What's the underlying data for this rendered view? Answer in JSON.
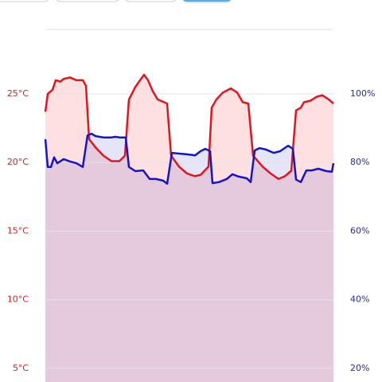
{
  "chart_data": {
    "type": "line",
    "xlim": [
      0,
      362
    ],
    "ylim": [
      4,
      29.7
    ],
    "yticks": [
      {
        "value": 5,
        "label": "5°C"
      },
      {
        "value": 10,
        "label": "10°C"
      },
      {
        "value": 15,
        "label": "15°C"
      },
      {
        "value": 20,
        "label": "20°C"
      },
      {
        "value": 25,
        "label": "25°C"
      }
    ],
    "y2lim": [
      16,
      118.8
    ],
    "y2ticks": [
      {
        "value": 20,
        "label": "20%"
      },
      {
        "value": 40,
        "label": "40%"
      },
      {
        "value": 60,
        "label": "60%"
      },
      {
        "value": 80,
        "label": "80%"
      },
      {
        "value": 100,
        "label": "100%"
      }
    ],
    "grid": true,
    "series": [
      {
        "color": "#e0161e",
        "fill": "rgba(255,0,0,0.12)",
        "x": [
          0,
          3,
          9,
          13,
          19,
          23,
          31,
          39,
          47,
          51,
          55,
          63,
          73,
          83,
          93,
          100,
          105,
          113,
          119,
          124,
          129,
          135,
          141,
          149,
          153,
          158,
          168,
          178,
          188,
          195,
          205,
          209,
          215,
          223,
          233,
          241,
          248,
          255,
          261,
          273,
          283,
          293,
          301,
          309,
          315,
          321,
          325,
          333,
          341,
          348,
          356,
          362
        ],
        "values": [
          23.7,
          25.0,
          25.3,
          26.0,
          25.9,
          26.1,
          26.2,
          26.0,
          26.0,
          25.6,
          21.7,
          21.1,
          20.5,
          20.1,
          20.1,
          20.5,
          24.6,
          25.5,
          26.0,
          26.4,
          26.0,
          25.2,
          24.6,
          24.4,
          24.3,
          20.5,
          19.7,
          19.2,
          19.0,
          19.1,
          19.7,
          24.0,
          24.6,
          25.1,
          25.4,
          25.1,
          24.4,
          24.3,
          20.5,
          19.7,
          19.2,
          18.8,
          19.0,
          19.4,
          23.8,
          24.0,
          24.4,
          24.5,
          24.8,
          24.9,
          24.6,
          24.3
        ]
      },
      {
        "color": "#1414c8",
        "fill": "rgba(0,0,200,0.10)",
        "axis": "y2",
        "x": [
          0,
          3,
          7,
          11,
          15,
          23,
          31,
          39,
          47,
          53,
          58,
          63,
          73,
          83,
          88,
          93,
          101,
          105,
          113,
          123,
          131,
          139,
          148,
          153,
          159,
          168,
          178,
          188,
          195,
          201,
          207,
          210,
          218,
          228,
          235,
          243,
          253,
          258,
          263,
          269,
          277,
          287,
          295,
          305,
          311,
          315,
          321,
          328,
          335,
          343,
          353,
          360,
          362
        ],
        "values": [
          86.8,
          78.7,
          78.7,
          81.5,
          79.8,
          81.0,
          80.3,
          79.8,
          78.7,
          87.9,
          88.4,
          87.7,
          87.3,
          87.3,
          87.5,
          87.3,
          87.3,
          78.7,
          77.5,
          77.7,
          75.2,
          75.2,
          74.7,
          73.8,
          82.8,
          82.6,
          82.4,
          82.1,
          83.3,
          84.0,
          83.3,
          74.0,
          74.3,
          75.2,
          76.6,
          75.9,
          75.4,
          74.3,
          83.5,
          84.2,
          83.8,
          82.8,
          83.3,
          84.9,
          84.0,
          75.0,
          74.3,
          77.7,
          77.7,
          78.2,
          77.5,
          77.3,
          79.8
        ]
      }
    ]
  }
}
